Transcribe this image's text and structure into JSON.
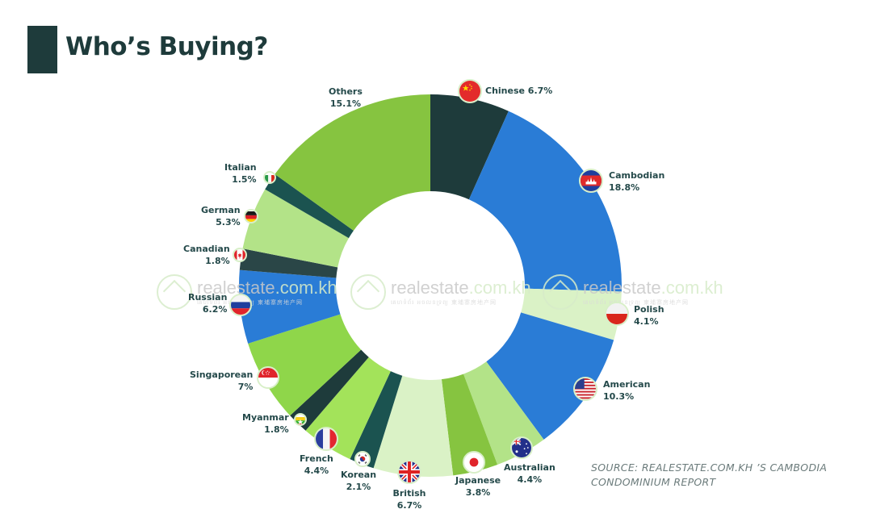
{
  "header": {
    "title": "Who’s Buying?"
  },
  "watermark": {
    "brand": "realestate",
    "domain": ".com.kh",
    "subtitle": "គេហទំព័រ អចលនទ្រព្យ  柬埔寨房地产网"
  },
  "source": {
    "line1": "SOURCE: REALESTATE.COM.KH ’S CAMBODIA",
    "line2": "CONDOMINIUM REPORT"
  },
  "colors": {
    "dark_teal": "#1e3b3b",
    "teal": "#1b5350",
    "slate": "#2a4647",
    "blue": "#2a7cd6",
    "green": "#86c440",
    "bright_green": "#8fd64a",
    "lime": "#a3e35a",
    "light_green": "#b3e388",
    "pale_green": "#daf2c6"
  },
  "chart_data": {
    "type": "pie",
    "subtype": "donut",
    "title": "Who’s Buying?",
    "start": "top, clockwise",
    "unit": "%",
    "slices": [
      {
        "name": "Chinese",
        "value": 6.7,
        "label": "Chinese 6.7%",
        "color": "#1e3b3b",
        "flag": "china-flag-icon"
      },
      {
        "name": "Cambodian",
        "value": 18.8,
        "label": "Cambodian",
        "pct": "18.8%",
        "color": "#2a7cd6",
        "flag": "cambodia-flag-icon"
      },
      {
        "name": "Polish",
        "value": 4.1,
        "label": "Polish",
        "pct": "4.1%",
        "color": "#daf2c6",
        "flag": "poland-flag-icon"
      },
      {
        "name": "American",
        "value": 10.3,
        "label": "American",
        "pct": "10.3%",
        "color": "#2a7cd6",
        "flag": "usa-flag-icon"
      },
      {
        "name": "Australian",
        "value": 4.4,
        "label": "Australian",
        "pct": "4.4%",
        "color": "#b3e388",
        "flag": "australia-flag-icon"
      },
      {
        "name": "Japanese",
        "value": 3.8,
        "label": "Japanese",
        "pct": "3.8%",
        "color": "#86c440",
        "flag": "japan-flag-icon"
      },
      {
        "name": "British",
        "value": 6.7,
        "label": "British",
        "pct": "6.7%",
        "color": "#daf2c6",
        "flag": "uk-flag-icon"
      },
      {
        "name": "Korean",
        "value": 2.1,
        "label": "Korean",
        "pct": "2.1%",
        "color": "#1b5350",
        "flag": "korea-flag-icon"
      },
      {
        "name": "French",
        "value": 4.4,
        "label": "French",
        "pct": "4.4%",
        "color": "#a3e35a",
        "flag": "france-flag-icon"
      },
      {
        "name": "Myanmar",
        "value": 1.8,
        "label": "Myanmar",
        "pct": "1.8%",
        "color": "#1e3b3b",
        "flag": "myanmar-flag-icon"
      },
      {
        "name": "Singaporean",
        "value": 7.0,
        "label": "Singaporean",
        "pct": "7%",
        "color": "#8fd64a",
        "flag": "singapore-flag-icon"
      },
      {
        "name": "Russian",
        "value": 6.2,
        "label": "Russian",
        "pct": "6.2%",
        "color": "#2a7cd6",
        "flag": "russia-flag-icon"
      },
      {
        "name": "Canadian",
        "value": 1.8,
        "label": "Canadian",
        "pct": "1.8%",
        "color": "#2a4647",
        "flag": "canada-flag-icon"
      },
      {
        "name": "German",
        "value": 5.3,
        "label": "German",
        "pct": "5.3%",
        "color": "#b3e388",
        "flag": "germany-flag-icon"
      },
      {
        "name": "Italian",
        "value": 1.5,
        "label": "Italian",
        "pct": "1.5%",
        "color": "#1b5350",
        "flag": "italy-flag-icon"
      },
      {
        "name": "Others",
        "value": 15.1,
        "label": "Others",
        "pct": "15.1%",
        "color": "#86c440",
        "flag": null
      }
    ]
  }
}
